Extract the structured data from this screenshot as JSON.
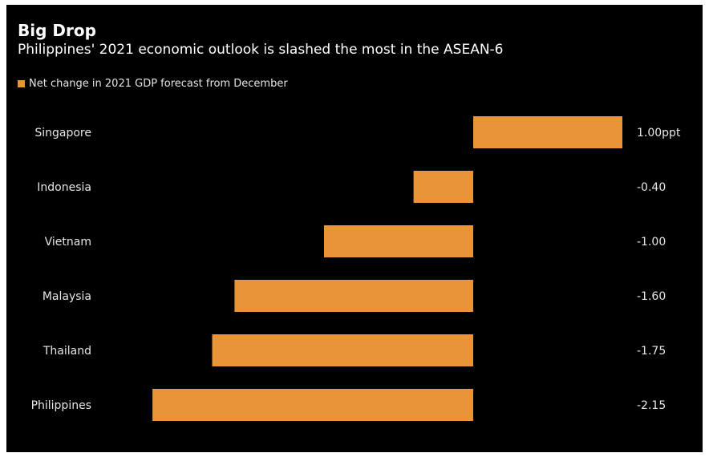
{
  "chart_data": {
    "type": "bar",
    "orientation": "horizontal",
    "title": "Big Drop",
    "subtitle": "Philippines' 2021 economic outlook is slashed the most in the ASEAN-6",
    "categories": [
      "Singapore",
      "Indonesia",
      "Vietnam",
      "Malaysia",
      "Thailand",
      "Philippines"
    ],
    "series": [
      {
        "name": "Net change in 2021 GDP forecast from December",
        "values": [
          1.0,
          -0.4,
          -1.0,
          -1.6,
          -1.75,
          -2.15
        ],
        "labels": [
          "1.00ppt",
          "-0.40",
          "-1.00",
          "-1.60",
          "-1.75",
          "-2.15"
        ]
      }
    ],
    "xlim": [
      -2.15,
      1.0
    ],
    "grid": false,
    "legend_position": "top-left",
    "colors": {
      "bar": "#e8953a",
      "background": "#000000",
      "text": "#ffffff"
    }
  }
}
